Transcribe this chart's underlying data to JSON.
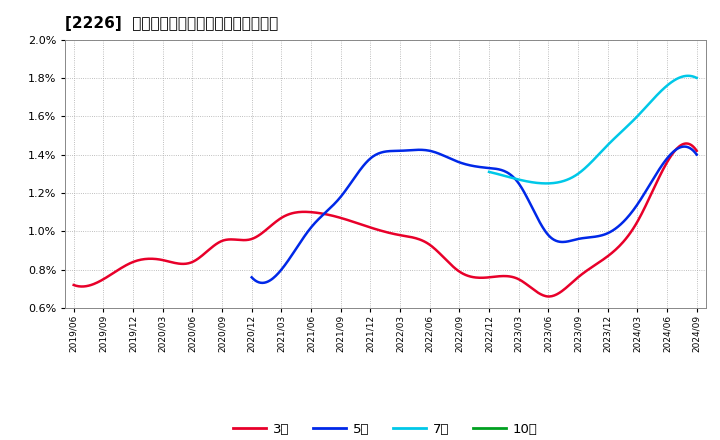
{
  "title": "[2226]  経常利益マージンの標準偏差の推移",
  "ylim": [
    0.006,
    0.02
  ],
  "yticks": [
    0.006,
    0.008,
    0.01,
    0.012,
    0.014,
    0.016,
    0.018,
    0.02
  ],
  "x_labels": [
    "2019/06",
    "2019/09",
    "2019/12",
    "2020/03",
    "2020/06",
    "2020/09",
    "2020/12",
    "2021/03",
    "2021/06",
    "2021/09",
    "2021/12",
    "2022/03",
    "2022/06",
    "2022/09",
    "2022/12",
    "2023/03",
    "2023/06",
    "2023/09",
    "2023/12",
    "2024/03",
    "2024/06",
    "2024/09"
  ],
  "series_3y": [
    0.0072,
    0.0075,
    0.0084,
    0.0085,
    0.0084,
    0.0095,
    0.0096,
    0.0107,
    0.011,
    0.0107,
    0.0102,
    0.0098,
    0.0093,
    0.0079,
    0.0076,
    0.0075,
    0.0066,
    0.0076,
    0.0087,
    0.0105,
    0.0136,
    0.0142
  ],
  "series_5y": [
    null,
    null,
    null,
    null,
    null,
    null,
    0.0076,
    0.008,
    0.0102,
    0.0118,
    0.0138,
    0.0142,
    0.0142,
    0.0136,
    0.0133,
    0.0125,
    0.0098,
    0.0096,
    0.0099,
    0.0114,
    0.0138,
    0.014
  ],
  "series_7y": [
    null,
    null,
    null,
    null,
    null,
    null,
    null,
    null,
    null,
    null,
    null,
    null,
    null,
    null,
    0.0131,
    0.0127,
    0.0125,
    0.013,
    0.0145,
    0.016,
    0.0176,
    0.018
  ],
  "series_10y": [
    null,
    null,
    null,
    null,
    null,
    null,
    null,
    null,
    null,
    null,
    null,
    null,
    null,
    null,
    null,
    null,
    null,
    null,
    null,
    null,
    null,
    null
  ],
  "color_3y": "#e8002a",
  "color_5y": "#0028e8",
  "color_7y": "#00c8e8",
  "color_10y": "#00a020",
  "legend_labels": [
    "3年",
    "5年",
    "7年",
    "10年"
  ],
  "background_color": "#ffffff",
  "grid_color": "#aaaaaa",
  "title_fontsize": 11
}
